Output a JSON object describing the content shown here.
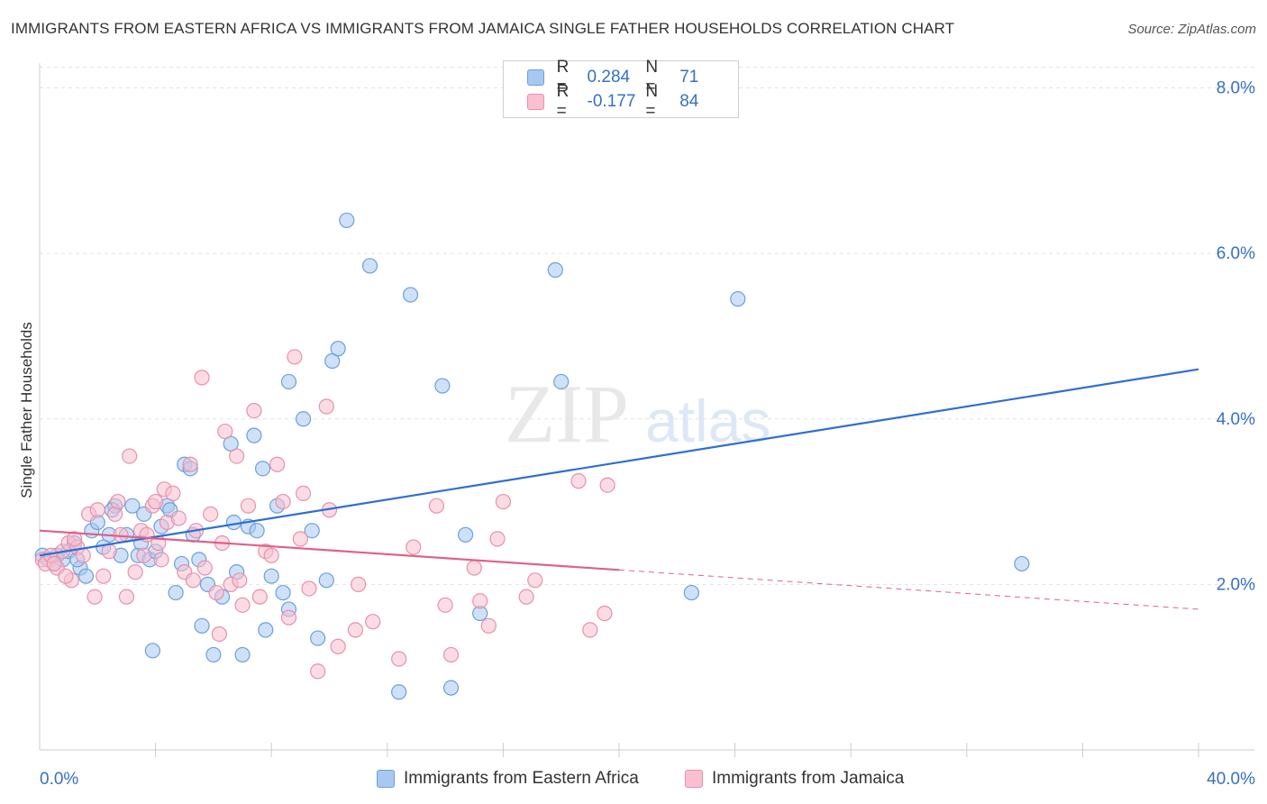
{
  "title": "IMMIGRANTS FROM EASTERN AFRICA VS IMMIGRANTS FROM JAMAICA SINGLE FATHER HOUSEHOLDS CORRELATION CHART",
  "source": "Source: ZipAtlas.com",
  "watermark": {
    "zip": "ZIP",
    "atlas": "atlas"
  },
  "legend": {
    "rows": [
      {
        "r_label": "R =",
        "r_value": "0.284",
        "n_label": "N =",
        "n_value": "71",
        "color": "#a8c8f0",
        "border": "#6a9fe0"
      },
      {
        "r_label": "R =",
        "r_value": "-0.177",
        "n_label": "N =",
        "n_value": "84",
        "color": "#f8c0d0",
        "border": "#e890aa"
      }
    ]
  },
  "chart_data": {
    "type": "scatter",
    "title": "IMMIGRANTS FROM EASTERN AFRICA VS IMMIGRANTS FROM JAMAICA SINGLE FATHER HOUSEHOLDS CORRELATION CHART",
    "xlabel": "",
    "ylabel": "Single Father Households",
    "xlim": [
      0,
      40
    ],
    "ylim": [
      0,
      8.3
    ],
    "x_tick_labels": [
      "0.0%",
      "40.0%"
    ],
    "y_ticks": [
      2,
      4,
      6,
      8
    ],
    "y_tick_labels": [
      "2.0%",
      "4.0%",
      "6.0%",
      "8.0%"
    ],
    "grid": true,
    "series": [
      {
        "name": "Immigrants from Eastern Africa",
        "color": "#a8c8f0",
        "stroke": "#6a9fe0",
        "line_color": "#2f6fd0",
        "trend": {
          "x": [
            0,
            40
          ],
          "y": [
            2.35,
            4.6
          ],
          "dashed_from": null
        },
        "points": [
          [
            0.1,
            2.35
          ],
          [
            0.3,
            2.3
          ],
          [
            0.5,
            2.25
          ],
          [
            0.6,
            2.35
          ],
          [
            0.8,
            2.3
          ],
          [
            1.0,
            2.4
          ],
          [
            1.2,
            2.5
          ],
          [
            1.4,
            2.2
          ],
          [
            1.6,
            2.1
          ],
          [
            1.8,
            2.65
          ],
          [
            2.0,
            2.75
          ],
          [
            2.2,
            2.45
          ],
          [
            2.4,
            2.6
          ],
          [
            2.6,
            2.95
          ],
          [
            2.8,
            2.35
          ],
          [
            3.0,
            2.6
          ],
          [
            3.2,
            2.95
          ],
          [
            3.4,
            2.35
          ],
          [
            3.5,
            2.5
          ],
          [
            3.6,
            2.85
          ],
          [
            3.8,
            2.3
          ],
          [
            4.0,
            2.4
          ],
          [
            4.2,
            2.7
          ],
          [
            4.4,
            2.95
          ],
          [
            4.5,
            2.9
          ],
          [
            4.7,
            1.9
          ],
          [
            4.9,
            2.25
          ],
          [
            5.0,
            3.45
          ],
          [
            5.2,
            3.4
          ],
          [
            5.3,
            2.6
          ],
          [
            5.5,
            2.3
          ],
          [
            5.6,
            1.5
          ],
          [
            5.8,
            2.0
          ],
          [
            6.0,
            1.15
          ],
          [
            6.3,
            1.85
          ],
          [
            6.6,
            3.7
          ],
          [
            6.7,
            2.75
          ],
          [
            6.8,
            2.15
          ],
          [
            7.0,
            1.15
          ],
          [
            7.2,
            2.7
          ],
          [
            7.4,
            3.8
          ],
          [
            7.5,
            2.65
          ],
          [
            7.7,
            3.4
          ],
          [
            7.8,
            1.45
          ],
          [
            8.0,
            2.1
          ],
          [
            8.2,
            2.95
          ],
          [
            8.4,
            1.9
          ],
          [
            8.6,
            4.45
          ],
          [
            8.6,
            1.7
          ],
          [
            9.1,
            4.0
          ],
          [
            9.4,
            2.65
          ],
          [
            9.6,
            1.35
          ],
          [
            9.9,
            2.05
          ],
          [
            10.1,
            4.7
          ],
          [
            10.3,
            4.85
          ],
          [
            10.6,
            6.4
          ],
          [
            11.4,
            5.85
          ],
          [
            12.4,
            0.7
          ],
          [
            12.8,
            5.5
          ],
          [
            13.9,
            4.4
          ],
          [
            14.2,
            0.75
          ],
          [
            14.7,
            2.6
          ],
          [
            15.2,
            1.65
          ],
          [
            17.8,
            5.8
          ],
          [
            18.0,
            4.45
          ],
          [
            24.1,
            5.45
          ],
          [
            22.5,
            1.9
          ],
          [
            33.9,
            2.25
          ],
          [
            1.3,
            2.3
          ],
          [
            2.5,
            2.9
          ],
          [
            3.9,
            1.2
          ]
        ]
      },
      {
        "name": "Immigrants from Jamaica",
        "color": "#f8c0d0",
        "stroke": "#e890aa",
        "line_color": "#e0608a",
        "trend": {
          "x": [
            0,
            40
          ],
          "y": [
            2.65,
            1.7
          ],
          "dashed_from": 20
        },
        "points": [
          [
            0.1,
            2.3
          ],
          [
            0.2,
            2.25
          ],
          [
            0.4,
            2.35
          ],
          [
            0.6,
            2.2
          ],
          [
            0.8,
            2.4
          ],
          [
            1.0,
            2.5
          ],
          [
            1.1,
            2.05
          ],
          [
            1.3,
            2.45
          ],
          [
            1.5,
            2.35
          ],
          [
            1.7,
            2.85
          ],
          [
            1.9,
            1.85
          ],
          [
            2.0,
            2.9
          ],
          [
            2.2,
            2.1
          ],
          [
            2.4,
            2.4
          ],
          [
            2.6,
            2.85
          ],
          [
            2.8,
            2.6
          ],
          [
            3.0,
            1.85
          ],
          [
            3.1,
            3.55
          ],
          [
            3.3,
            2.15
          ],
          [
            3.5,
            2.65
          ],
          [
            3.7,
            2.6
          ],
          [
            3.9,
            2.95
          ],
          [
            4.0,
            3.0
          ],
          [
            4.1,
            2.5
          ],
          [
            4.3,
            3.15
          ],
          [
            4.4,
            2.75
          ],
          [
            4.6,
            3.1
          ],
          [
            4.8,
            2.8
          ],
          [
            5.0,
            2.15
          ],
          [
            5.2,
            3.45
          ],
          [
            5.3,
            2.05
          ],
          [
            5.6,
            4.5
          ],
          [
            5.7,
            2.2
          ],
          [
            5.9,
            2.85
          ],
          [
            6.1,
            1.9
          ],
          [
            6.3,
            2.5
          ],
          [
            6.4,
            3.85
          ],
          [
            6.6,
            2.0
          ],
          [
            6.8,
            3.55
          ],
          [
            7.0,
            1.75
          ],
          [
            7.2,
            2.95
          ],
          [
            7.4,
            4.1
          ],
          [
            7.6,
            1.85
          ],
          [
            7.8,
            2.4
          ],
          [
            8.0,
            2.35
          ],
          [
            8.2,
            3.45
          ],
          [
            8.4,
            3.0
          ],
          [
            8.6,
            1.6
          ],
          [
            8.8,
            4.75
          ],
          [
            9.0,
            2.55
          ],
          [
            9.1,
            3.1
          ],
          [
            9.3,
            1.95
          ],
          [
            9.6,
            0.95
          ],
          [
            9.9,
            4.15
          ],
          [
            10.0,
            2.9
          ],
          [
            10.3,
            1.25
          ],
          [
            10.9,
            1.45
          ],
          [
            11.0,
            2.0
          ],
          [
            11.5,
            1.55
          ],
          [
            12.4,
            1.1
          ],
          [
            12.9,
            2.45
          ],
          [
            13.7,
            2.95
          ],
          [
            14.2,
            1.15
          ],
          [
            14.0,
            1.75
          ],
          [
            15.0,
            2.2
          ],
          [
            15.2,
            1.8
          ],
          [
            15.5,
            1.5
          ],
          [
            15.8,
            2.55
          ],
          [
            16.0,
            3.0
          ],
          [
            16.8,
            1.85
          ],
          [
            17.1,
            2.05
          ],
          [
            18.6,
            3.25
          ],
          [
            19.0,
            1.45
          ],
          [
            19.5,
            1.65
          ],
          [
            19.6,
            3.2
          ],
          [
            0.5,
            2.25
          ],
          [
            1.2,
            2.55
          ],
          [
            2.7,
            3.0
          ],
          [
            4.2,
            2.3
          ],
          [
            5.4,
            2.65
          ],
          [
            6.2,
            1.4
          ],
          [
            6.9,
            2.05
          ],
          [
            0.9,
            2.1
          ],
          [
            3.6,
            2.35
          ]
        ]
      }
    ]
  },
  "bottom_legend": [
    {
      "label": "Immigrants from Eastern Africa",
      "color": "#a8c8f0",
      "border": "#6a9fe0"
    },
    {
      "label": "Immigrants from Jamaica",
      "color": "#f8c0d0",
      "border": "#e890aa"
    }
  ]
}
